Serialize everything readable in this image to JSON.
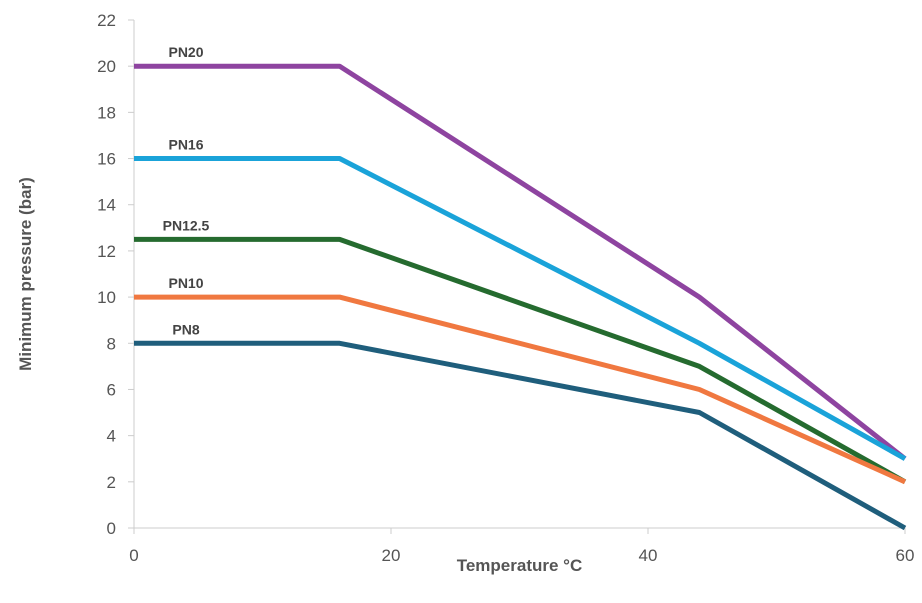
{
  "chart_data": {
    "type": "line",
    "title": "",
    "xlabel": "Temperature °C",
    "ylabel": "Minimum pressure (bar)",
    "xlim": [
      0,
      60
    ],
    "ylim": [
      0,
      22
    ],
    "x_ticks": [
      0,
      20,
      40,
      60
    ],
    "y_ticks": [
      0,
      2,
      4,
      6,
      8,
      10,
      12,
      14,
      16,
      18,
      20,
      22
    ],
    "grid": false,
    "legend": "inline labels above each line",
    "series": [
      {
        "name": "PN20",
        "color": "#8e44a0",
        "points": [
          [
            0,
            20
          ],
          [
            16,
            20
          ],
          [
            44,
            10
          ],
          [
            60,
            3
          ]
        ]
      },
      {
        "name": "PN16",
        "color": "#1aa3d9",
        "points": [
          [
            0,
            16
          ],
          [
            16,
            16
          ],
          [
            44,
            8
          ],
          [
            60,
            3
          ]
        ]
      },
      {
        "name": "PN12.5",
        "color": "#256b2f",
        "points": [
          [
            0,
            12.5
          ],
          [
            16,
            12.5
          ],
          [
            44,
            7
          ],
          [
            60,
            2
          ]
        ]
      },
      {
        "name": "PN10",
        "color": "#f07840",
        "points": [
          [
            0,
            10
          ],
          [
            16,
            10
          ],
          [
            44,
            6
          ],
          [
            60,
            2
          ]
        ]
      },
      {
        "name": "PN8",
        "color": "#1f5e7c",
        "points": [
          [
            0,
            8
          ],
          [
            16,
            8
          ],
          [
            44,
            5
          ],
          [
            60,
            0
          ]
        ]
      }
    ]
  }
}
